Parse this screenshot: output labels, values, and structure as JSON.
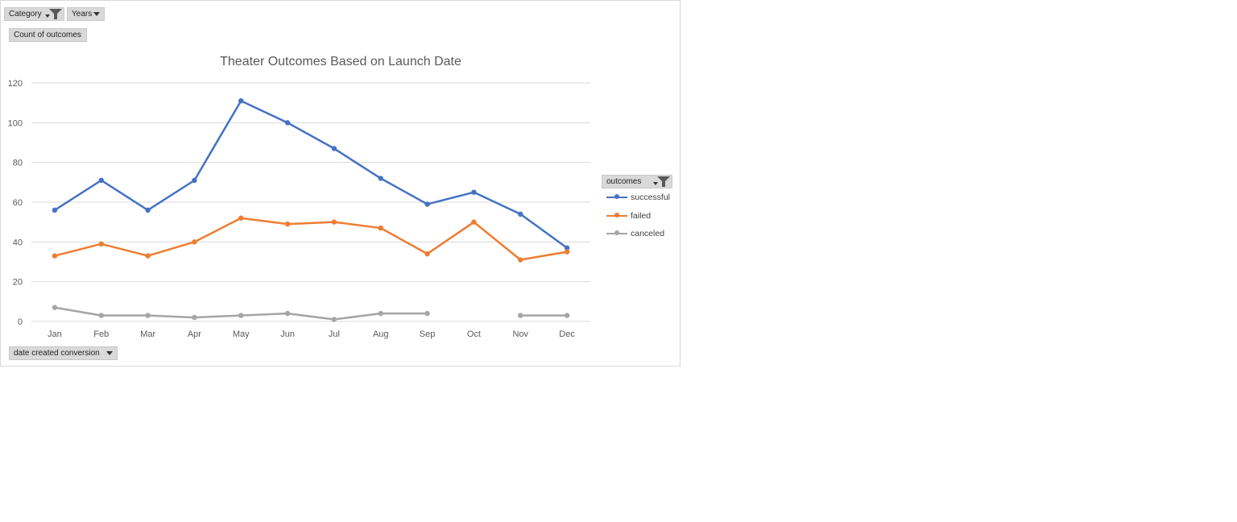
{
  "filters": {
    "category_label": "Category",
    "years_label": "Years",
    "values_label": "Count of outcomes",
    "axis_field_label": "date created conversion",
    "legend_field_label": "outcomes"
  },
  "chart_data": {
    "type": "line",
    "title": "Theater Outcomes Based on Launch Date",
    "xlabel": "",
    "ylabel": "",
    "categories": [
      "Jan",
      "Feb",
      "Mar",
      "Apr",
      "May",
      "Jun",
      "Jul",
      "Aug",
      "Sep",
      "Oct",
      "Nov",
      "Dec"
    ],
    "ylim": [
      0,
      120
    ],
    "yticks": [
      0,
      20,
      40,
      60,
      80,
      100,
      120
    ],
    "grid": true,
    "legend_position": "right",
    "series": [
      {
        "name": "successful",
        "color": "#4472c4",
        "values": [
          56,
          71,
          56,
          71,
          111,
          100,
          87,
          72,
          59,
          65,
          54,
          37
        ]
      },
      {
        "name": "failed",
        "color": "#ed7d31",
        "values": [
          33,
          39,
          33,
          40,
          52,
          49,
          50,
          47,
          34,
          50,
          31,
          35
        ]
      },
      {
        "name": "canceled",
        "color": "#a5a5a5",
        "values": [
          7,
          3,
          3,
          2,
          3,
          4,
          1,
          4,
          4,
          null,
          3,
          3
        ]
      }
    ]
  }
}
